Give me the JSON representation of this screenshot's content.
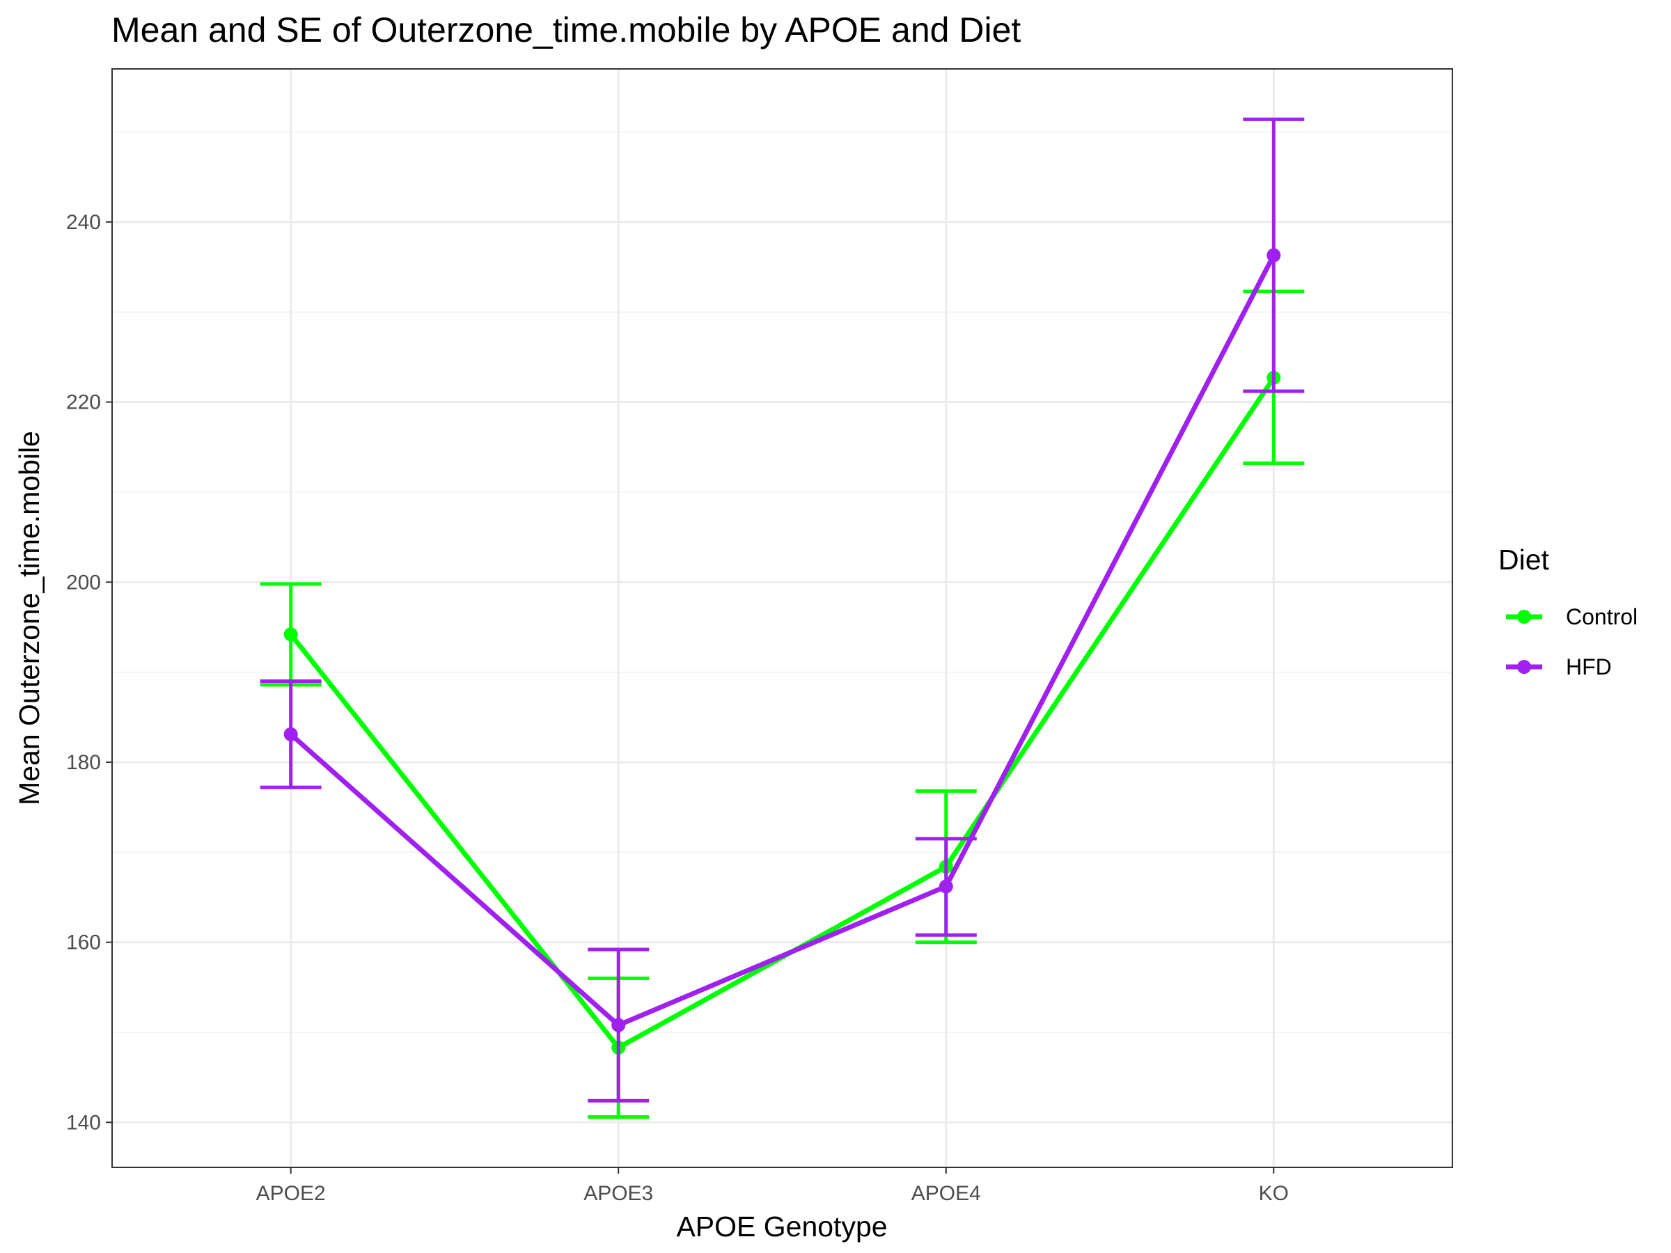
{
  "chart_data": {
    "type": "line",
    "title": "Mean and SE of Outerzone_time.mobile by APOE and Diet",
    "xlabel": "APOE Genotype",
    "ylabel": "Mean Outerzone_time.mobile",
    "categories": [
      "APOE2",
      "APOE3",
      "APOE4",
      "KO"
    ],
    "ylim": [
      135,
      257
    ],
    "yticks": [
      140,
      160,
      180,
      200,
      220,
      240
    ],
    "grid": true,
    "legend": {
      "title": "Diet",
      "position": "right"
    },
    "error_bars": "SE",
    "series": [
      {
        "name": "Control",
        "color": "#00ff00",
        "values": [
          194.2,
          148.3,
          168.4,
          222.7
        ],
        "lower": [
          188.6,
          140.6,
          160.0,
          213.2
        ],
        "upper": [
          199.8,
          156.0,
          176.8,
          232.3
        ]
      },
      {
        "name": "HFD",
        "color": "#a020f0",
        "values": [
          183.1,
          150.8,
          166.2,
          236.3
        ],
        "lower": [
          177.2,
          142.4,
          160.8,
          221.2
        ],
        "upper": [
          189.0,
          159.2,
          171.5,
          251.4
        ]
      }
    ]
  }
}
